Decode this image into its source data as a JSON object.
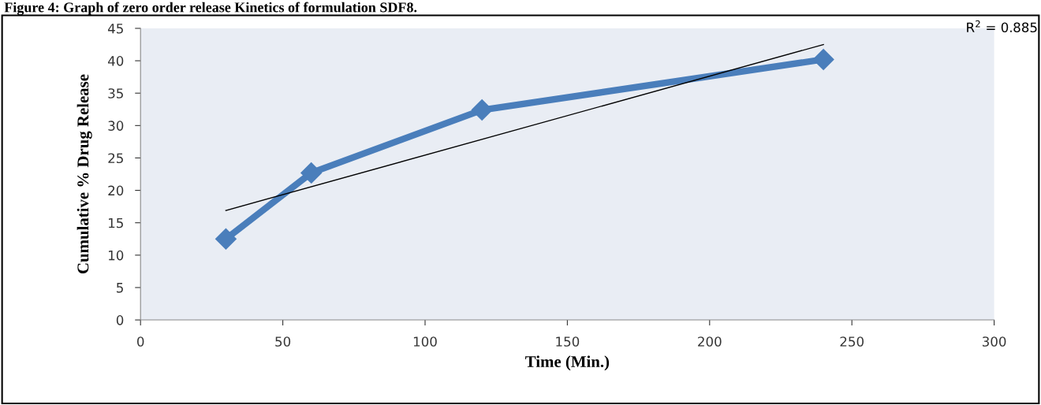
{
  "chart_data": {
    "type": "line",
    "title": "Figure 4: Graph of zero order release Kinetics of formulation SDF8.",
    "xlabel": "Time (Min.)",
    "ylabel": "Cumulative % Drug Release",
    "series": [
      {
        "type": "line",
        "color": "#4a7ebb",
        "x": [
          30,
          60,
          120,
          240
        ],
        "values": [
          12.5,
          22.7,
          32.4,
          40.2
        ],
        "marker": "diamond"
      },
      {
        "type": "line",
        "color": "#000000",
        "x": [
          30,
          240
        ],
        "values": [
          16.9,
          42.5
        ],
        "marker": "none"
      }
    ],
    "annotations": [
      "R$^{2}$ = 0.885"
    ],
    "xlim": [
      0,
      300
    ],
    "xticks": [
      0,
      50,
      100,
      150,
      200,
      250,
      300
    ],
    "ylim": [
      0,
      45
    ],
    "yticks": [
      0,
      5,
      10,
      15,
      20,
      25,
      30,
      35,
      40,
      45
    ],
    "grid": false,
    "legend": false
  }
}
